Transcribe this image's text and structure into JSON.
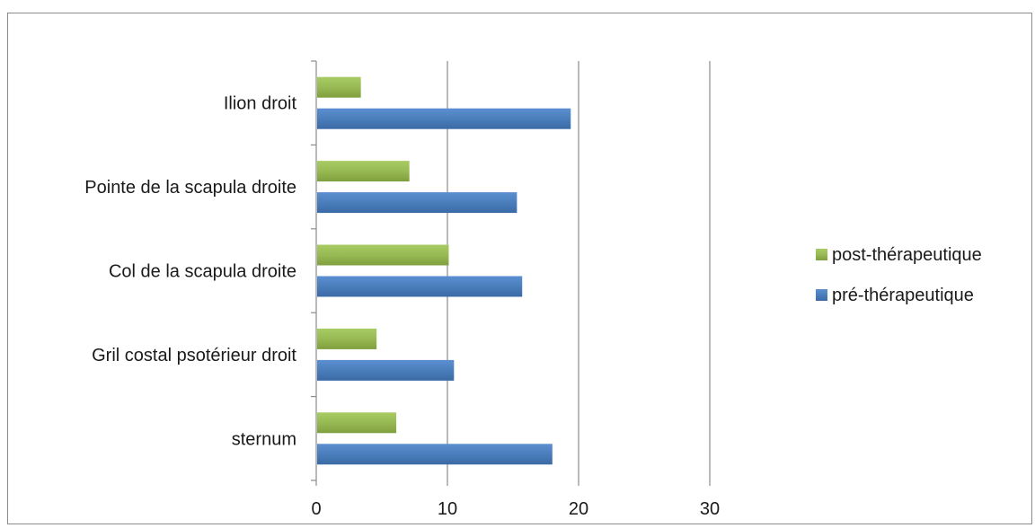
{
  "chart_data": {
    "type": "bar",
    "orientation": "horizontal",
    "categories": [
      "sternum",
      "Gril costal psotérieur droit",
      "Col de la scapula droite",
      "Pointe de la scapula droite",
      "Ilion droit"
    ],
    "series": [
      {
        "name": "pré-thérapeutique",
        "color": "#4a7ebb",
        "values": [
          18,
          10.5,
          15.7,
          15.3,
          19.4
        ]
      },
      {
        "name": "post-thérapeutique",
        "color": "#98b954",
        "values": [
          6.1,
          4.6,
          10.1,
          7.1,
          3.4
        ]
      }
    ],
    "xlim": [
      0,
      30
    ],
    "xticks": [
      0,
      10,
      20,
      30
    ],
    "xtick_labels": [
      "0",
      "10",
      "20",
      "30"
    ],
    "grid": true,
    "legend_position": "right"
  }
}
